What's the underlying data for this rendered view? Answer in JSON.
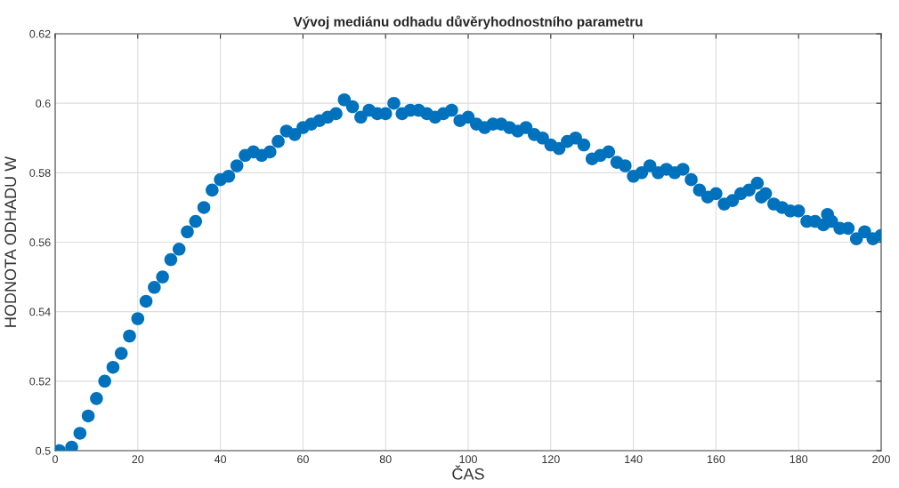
{
  "chart_data": {
    "type": "scatter",
    "title": "Vývoj mediánu odhadu důvěryhodnostního parametru",
    "xlabel": "ČAS",
    "ylabel": "HODNOTA ODHADU W",
    "x": [
      1,
      4,
      6,
      8,
      10,
      12,
      14,
      16,
      18,
      20,
      22,
      24,
      26,
      28,
      30,
      32,
      34,
      36,
      38,
      40,
      42,
      44,
      46,
      48,
      50,
      52,
      54,
      56,
      58,
      60,
      62,
      64,
      66,
      68,
      70,
      72,
      74,
      76,
      78,
      80,
      82,
      84,
      86,
      88,
      90,
      92,
      94,
      96,
      98,
      100,
      102,
      104,
      106,
      108,
      110,
      112,
      114,
      116,
      118,
      120,
      122,
      124,
      126,
      128,
      130,
      132,
      134,
      136,
      138,
      140,
      142,
      144,
      146,
      148,
      150,
      152,
      154,
      156,
      158,
      160,
      162,
      164,
      166,
      168,
      170,
      171,
      172,
      174,
      176,
      178,
      180,
      182,
      184,
      186,
      187,
      188,
      190,
      192,
      194,
      196,
      198,
      200
    ],
    "series": [
      {
        "color": "#0072bd",
        "values": [
          0.5,
          0.501,
          0.505,
          0.51,
          0.515,
          0.52,
          0.524,
          0.528,
          0.533,
          0.538,
          0.543,
          0.547,
          0.55,
          0.555,
          0.558,
          0.563,
          0.566,
          0.57,
          0.575,
          0.578,
          0.579,
          0.582,
          0.585,
          0.586,
          0.585,
          0.586,
          0.589,
          0.592,
          0.591,
          0.593,
          0.594,
          0.595,
          0.596,
          0.597,
          0.601,
          0.599,
          0.596,
          0.598,
          0.597,
          0.597,
          0.6,
          0.597,
          0.598,
          0.598,
          0.597,
          0.596,
          0.597,
          0.598,
          0.595,
          0.596,
          0.594,
          0.593,
          0.594,
          0.594,
          0.593,
          0.592,
          0.593,
          0.591,
          0.59,
          0.588,
          0.587,
          0.589,
          0.59,
          0.588,
          0.584,
          0.585,
          0.586,
          0.583,
          0.582,
          0.579,
          0.58,
          0.582,
          0.58,
          0.581,
          0.58,
          0.581,
          0.578,
          0.575,
          0.573,
          0.574,
          0.571,
          0.572,
          0.574,
          0.575,
          0.577,
          0.573,
          0.574,
          0.571,
          0.57,
          0.569,
          0.569,
          0.566,
          0.566,
          0.565,
          0.568,
          0.566,
          0.564,
          0.564,
          0.561,
          0.563,
          0.561,
          0.562
        ]
      }
    ],
    "xlim": [
      0,
      200
    ],
    "xticks": [
      0,
      20,
      40,
      60,
      80,
      100,
      120,
      140,
      160,
      180,
      200
    ],
    "ylim": [
      0.5,
      0.62
    ],
    "yticks": [
      0.5,
      0.52,
      0.54,
      0.56,
      0.58,
      0.6,
      0.62
    ],
    "grid": true,
    "marker": "circle"
  }
}
